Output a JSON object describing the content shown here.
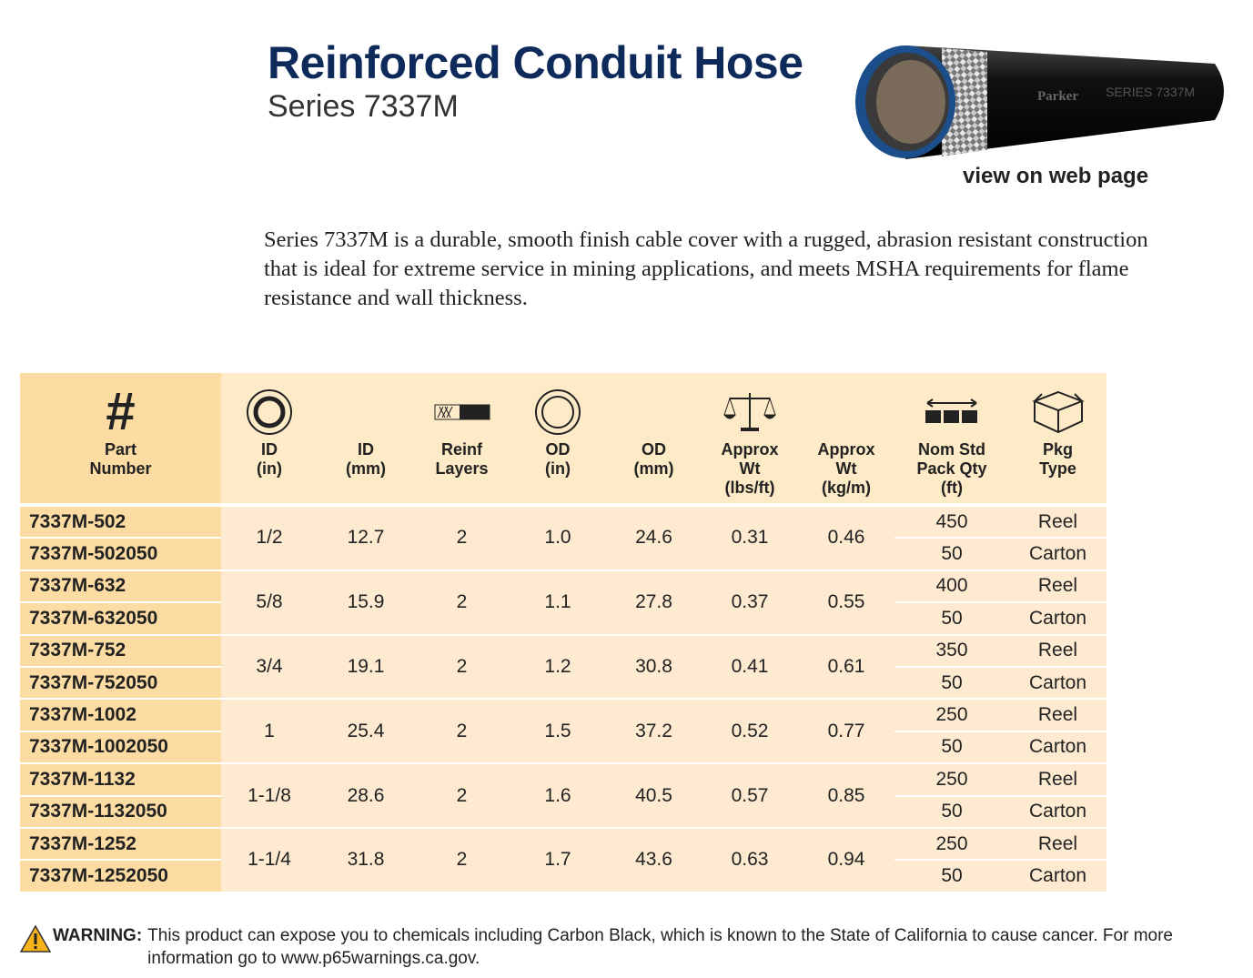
{
  "header": {
    "title": "Reinforced Conduit Hose",
    "subtitle": "Series 7337M"
  },
  "image": {
    "brand": "Parker",
    "label": "SERIES 7337M",
    "link": "view on web page"
  },
  "description": "Series 7337M is a durable, smooth finish cable cover with a rugged, abrasion resistant construction that is ideal for extreme service in mining applications, and meets MSHA requirements for flame resistance and wall thickness.",
  "table": {
    "symbol": "#",
    "columns": [
      "Part\nNumber",
      "ID\n(in)",
      "ID\n(mm)",
      "Reinf\nLayers",
      "OD\n(in)",
      "OD\n(mm)",
      "Approx\nWt\n(lbs/ft)",
      "Approx\nWt\n(kg/m)",
      "Nom Std\nPack Qty\n(ft)",
      "Pkg\nType"
    ],
    "groups": [
      {
        "shared": [
          "1/2",
          "12.7",
          "2",
          "1.0",
          "24.6",
          "0.31",
          "0.46"
        ],
        "parts": [
          [
            "7337M-502",
            "450",
            "Reel"
          ],
          [
            "7337M-502050",
            "50",
            "Carton"
          ]
        ]
      },
      {
        "shared": [
          "5/8",
          "15.9",
          "2",
          "1.1",
          "27.8",
          "0.37",
          "0.55"
        ],
        "parts": [
          [
            "7337M-632",
            "400",
            "Reel"
          ],
          [
            "7337M-632050",
            "50",
            "Carton"
          ]
        ]
      },
      {
        "shared": [
          "3/4",
          "19.1",
          "2",
          "1.2",
          "30.8",
          "0.41",
          "0.61"
        ],
        "parts": [
          [
            "7337M-752",
            "350",
            "Reel"
          ],
          [
            "7337M-752050",
            "50",
            "Carton"
          ]
        ]
      },
      {
        "shared": [
          "1",
          "25.4",
          "2",
          "1.5",
          "37.2",
          "0.52",
          "0.77"
        ],
        "parts": [
          [
            "7337M-1002",
            "250",
            "Reel"
          ],
          [
            "7337M-1002050",
            "50",
            "Carton"
          ]
        ]
      },
      {
        "shared": [
          "1-1/8",
          "28.6",
          "2",
          "1.6",
          "40.5",
          "0.57",
          "0.85"
        ],
        "parts": [
          [
            "7337M-1132",
            "250",
            "Reel"
          ],
          [
            "7337M-1132050",
            "50",
            "Carton"
          ]
        ]
      },
      {
        "shared": [
          "1-1/4",
          "31.8",
          "2",
          "1.7",
          "43.6",
          "0.63",
          "0.94"
        ],
        "parts": [
          [
            "7337M-1252",
            "250",
            "Reel"
          ],
          [
            "7337M-1252050",
            "50",
            "Carton"
          ]
        ]
      }
    ]
  },
  "warning": {
    "label": "WARNING:",
    "text": "This product can expose you to chemicals including Carbon Black, which is known to the State of California to cause cancer.  For more information go to www.p65warnings.ca.gov."
  }
}
